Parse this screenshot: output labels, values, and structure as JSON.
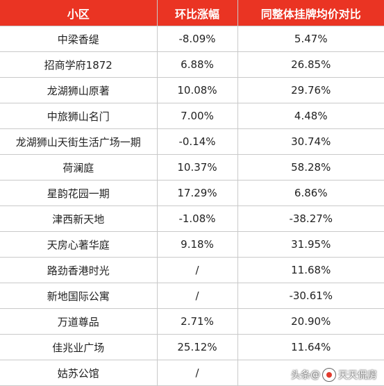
{
  "table": {
    "headers": [
      "小区",
      "环比涨幅",
      "同整体挂牌均价对比"
    ],
    "rows": [
      [
        "中梁香缇",
        "-8.09%",
        "5.47%"
      ],
      [
        "招商学府1872",
        "6.88%",
        "26.85%"
      ],
      [
        "龙湖狮山原著",
        "10.08%",
        "29.76%"
      ],
      [
        "中旅狮山名门",
        "7.00%",
        "4.48%"
      ],
      [
        "龙湖狮山天街生活广场一期",
        "-0.14%",
        "30.74%"
      ],
      [
        "荷澜庭",
        "10.37%",
        "58.28%"
      ],
      [
        "星韵花园一期",
        "17.29%",
        "6.86%"
      ],
      [
        "津西新天地",
        "-1.08%",
        "-38.27%"
      ],
      [
        "天房心著华庭",
        "9.18%",
        "31.95%"
      ],
      [
        "路劲香港时光",
        "/",
        "11.68%"
      ],
      [
        "新地国际公寓",
        "/",
        "-30.61%"
      ],
      [
        "万道尊品",
        "2.71%",
        "20.90%"
      ],
      [
        "佳兆业广场",
        "25.12%",
        "11.64%"
      ],
      [
        "姑苏公馆",
        "/",
        ""
      ]
    ]
  },
  "watermark": {
    "prefix": "头条",
    "at": "@",
    "name": "天天侃房"
  },
  "colors": {
    "header_bg": "#ea3423",
    "header_text": "#ffffff",
    "grid": "#c9c9c9"
  }
}
